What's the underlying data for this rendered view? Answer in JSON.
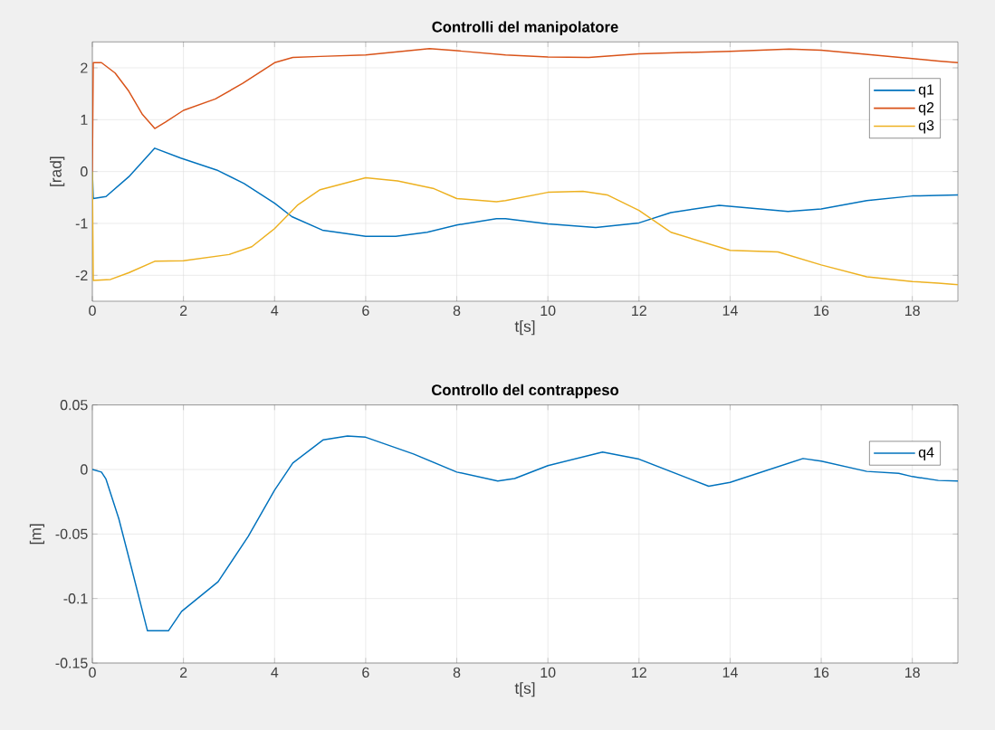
{
  "chart_data": [
    {
      "type": "line",
      "title": "Controlli del manipolatore",
      "xlabel": "t[s]",
      "ylabel": "[rad]",
      "xlim": [
        0,
        19
      ],
      "ylim": [
        -2.5,
        2.5
      ],
      "xticks": [
        0,
        2,
        4,
        6,
        8,
        10,
        12,
        14,
        16,
        18
      ],
      "yticks": [
        -2,
        -1,
        0,
        1,
        2
      ],
      "grid": true,
      "legend": "top right",
      "series": [
        {
          "name": "q1",
          "color": "#0072bd",
          "x": [
            0,
            0.02,
            0.3,
            0.8,
            1.37,
            1.94,
            2.73,
            3.33,
            4,
            4.38,
            5.05,
            6,
            6.66,
            7.35,
            8,
            8.87,
            9.07,
            10,
            11.05,
            12,
            12.7,
            13.76,
            15.27,
            16,
            17,
            18,
            18.57,
            19
          ],
          "values": [
            0,
            -0.52,
            -0.48,
            -0.1,
            0.45,
            0.26,
            0.03,
            -0.23,
            -0.61,
            -0.87,
            -1.13,
            -1.25,
            -1.25,
            -1.17,
            -1.03,
            -0.91,
            -0.91,
            -1.01,
            -1.08,
            -0.99,
            -0.79,
            -0.65,
            -0.77,
            -0.72,
            -0.56,
            -0.47,
            -0.46,
            -0.45
          ]
        },
        {
          "name": "q2",
          "color": "#d95319",
          "x": [
            0,
            0.02,
            0.2,
            0.5,
            0.8,
            1.1,
            1.37,
            1.6,
            2,
            2.7,
            3.3,
            4,
            4.4,
            5,
            6,
            7.4,
            8,
            9.07,
            10,
            10.9,
            12,
            14,
            15.3,
            16,
            18,
            18.57,
            19
          ],
          "values": [
            0,
            2.1,
            2.1,
            1.9,
            1.55,
            1.1,
            0.83,
            0.95,
            1.18,
            1.4,
            1.7,
            2.1,
            2.2,
            2.22,
            2.25,
            2.37,
            2.33,
            2.25,
            2.21,
            2.2,
            2.27,
            2.32,
            2.36,
            2.34,
            2.18,
            2.13,
            2.1
          ]
        },
        {
          "name": "q3",
          "color": "#edb120",
          "x": [
            0,
            0.02,
            0.4,
            0.8,
            1.37,
            2,
            3,
            3.5,
            4,
            4.5,
            5,
            6,
            6.7,
            7.5,
            8,
            8.87,
            9.07,
            10,
            10.77,
            11.3,
            12,
            12.7,
            14,
            15.05,
            16,
            17,
            18,
            18.57,
            19
          ],
          "values": [
            0,
            -2.1,
            -2.08,
            -1.95,
            -1.73,
            -1.72,
            -1.6,
            -1.45,
            -1.1,
            -0.65,
            -0.35,
            -0.12,
            -0.18,
            -0.33,
            -0.52,
            -0.58,
            -0.56,
            -0.4,
            -0.38,
            -0.45,
            -0.75,
            -1.17,
            -1.52,
            -1.55,
            -1.8,
            -2.03,
            -2.12,
            -2.15,
            -2.18
          ]
        }
      ]
    },
    {
      "type": "line",
      "title": "Controllo del contrappeso",
      "xlabel": "t[s]",
      "ylabel": "[m]",
      "xlim": [
        0,
        19
      ],
      "ylim": [
        -0.15,
        0.05
      ],
      "xticks": [
        0,
        2,
        4,
        6,
        8,
        10,
        12,
        14,
        16,
        18
      ],
      "yticks": [
        -0.15,
        -0.1,
        -0.05,
        0,
        0.05
      ],
      "grid": true,
      "legend": "top right",
      "series": [
        {
          "name": "q4",
          "color": "#0072bd",
          "x": [
            0,
            0.2,
            0.3,
            0.58,
            0.85,
            1.21,
            1.67,
            1.96,
            2.76,
            3.42,
            4,
            4.4,
            5.07,
            5.6,
            6,
            7.05,
            8,
            8.9,
            9.27,
            10,
            11.2,
            12,
            13.53,
            14,
            15.6,
            16,
            17,
            17.7,
            18,
            18.57,
            19
          ],
          "values": [
            0,
            -0.002,
            -0.0075,
            -0.038,
            -0.075,
            -0.125,
            -0.125,
            -0.11,
            -0.087,
            -0.052,
            -0.016,
            0.005,
            0.023,
            0.026,
            0.025,
            0.012,
            -0.002,
            -0.009,
            -0.007,
            0.003,
            0.0135,
            0.008,
            -0.013,
            -0.01,
            0.0085,
            0.0065,
            -0.0015,
            -0.003,
            -0.0055,
            -0.0085,
            -0.009
          ]
        }
      ]
    }
  ]
}
